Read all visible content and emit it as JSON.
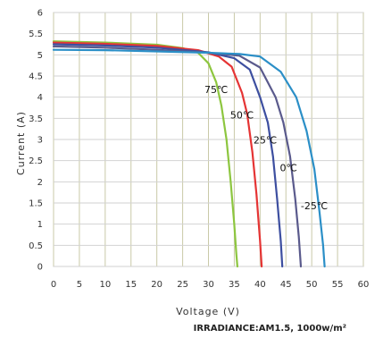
{
  "chart_data": {
    "type": "line",
    "title": "",
    "xlabel": "Voltage (V)",
    "ylabel": "Current (A)",
    "xlim": [
      0,
      60
    ],
    "ylim": [
      0,
      6
    ],
    "x_ticks": [
      "0",
      "5",
      "10",
      "15",
      "20",
      "25",
      "30",
      "35",
      "40",
      "45",
      "50",
      "55",
      "60"
    ],
    "y_ticks": [
      "0",
      "0.5",
      "1",
      "1.5",
      "2",
      "2.5",
      "3",
      "3.5",
      "4",
      "4.5",
      "5",
      "5.5",
      "6"
    ],
    "grid": true,
    "annotation": "IRRADIANCE:AM1.5, 1000w/m²",
    "series": [
      {
        "name": "75℃",
        "color": "#8dc63f",
        "label_at": [
          31.5,
          4.1
        ],
        "points": [
          [
            0,
            5.32
          ],
          [
            10,
            5.29
          ],
          [
            20,
            5.24
          ],
          [
            25,
            5.16
          ],
          [
            28,
            5.05
          ],
          [
            30,
            4.8
          ],
          [
            31.5,
            4.35
          ],
          [
            32.5,
            3.8
          ],
          [
            33.5,
            3.0
          ],
          [
            34.3,
            2.0
          ],
          [
            35,
            1.0
          ],
          [
            35.4,
            0.3
          ],
          [
            35.6,
            0
          ]
        ]
      },
      {
        "name": "50℃",
        "color": "#e53434",
        "label_at": [
          36.5,
          3.5
        ],
        "points": [
          [
            0,
            5.29
          ],
          [
            10,
            5.26
          ],
          [
            20,
            5.21
          ],
          [
            28,
            5.11
          ],
          [
            32,
            4.96
          ],
          [
            34.5,
            4.72
          ],
          [
            36.5,
            4.1
          ],
          [
            37.5,
            3.6
          ],
          [
            38.5,
            2.7
          ],
          [
            39.3,
            1.7
          ],
          [
            40,
            0.6
          ],
          [
            40.3,
            0
          ]
        ]
      },
      {
        "name": "25℃",
        "color": "#3d4fa0",
        "label_at": [
          41,
          2.9
        ],
        "points": [
          [
            0,
            5.25
          ],
          [
            10,
            5.22
          ],
          [
            20,
            5.17
          ],
          [
            30,
            5.06
          ],
          [
            35,
            4.92
          ],
          [
            38,
            4.65
          ],
          [
            40,
            4.0
          ],
          [
            41.5,
            3.4
          ],
          [
            42.5,
            2.6
          ],
          [
            43.3,
            1.6
          ],
          [
            44,
            0.6
          ],
          [
            44.3,
            0
          ]
        ]
      },
      {
        "name": "0℃",
        "color": "#5a5a8c",
        "label_at": [
          45.5,
          2.25
        ],
        "points": [
          [
            0,
            5.2
          ],
          [
            10,
            5.17
          ],
          [
            20,
            5.12
          ],
          [
            30,
            5.05
          ],
          [
            36,
            4.98
          ],
          [
            40,
            4.7
          ],
          [
            43,
            4.0
          ],
          [
            44.5,
            3.4
          ],
          [
            45.8,
            2.6
          ],
          [
            46.8,
            1.6
          ],
          [
            47.5,
            0.7
          ],
          [
            47.9,
            0
          ]
        ]
      },
      {
        "name": "-25℃",
        "color": "#2b8fc7",
        "label_at": [
          50.5,
          1.35
        ],
        "points": [
          [
            0,
            5.12
          ],
          [
            10,
            5.11
          ],
          [
            20,
            5.08
          ],
          [
            30,
            5.05
          ],
          [
            36,
            5.02
          ],
          [
            40,
            4.96
          ],
          [
            44,
            4.6
          ],
          [
            47,
            4.0
          ],
          [
            49,
            3.2
          ],
          [
            50.5,
            2.3
          ],
          [
            51.5,
            1.3
          ],
          [
            52.2,
            0.5
          ],
          [
            52.5,
            0
          ]
        ]
      }
    ]
  }
}
